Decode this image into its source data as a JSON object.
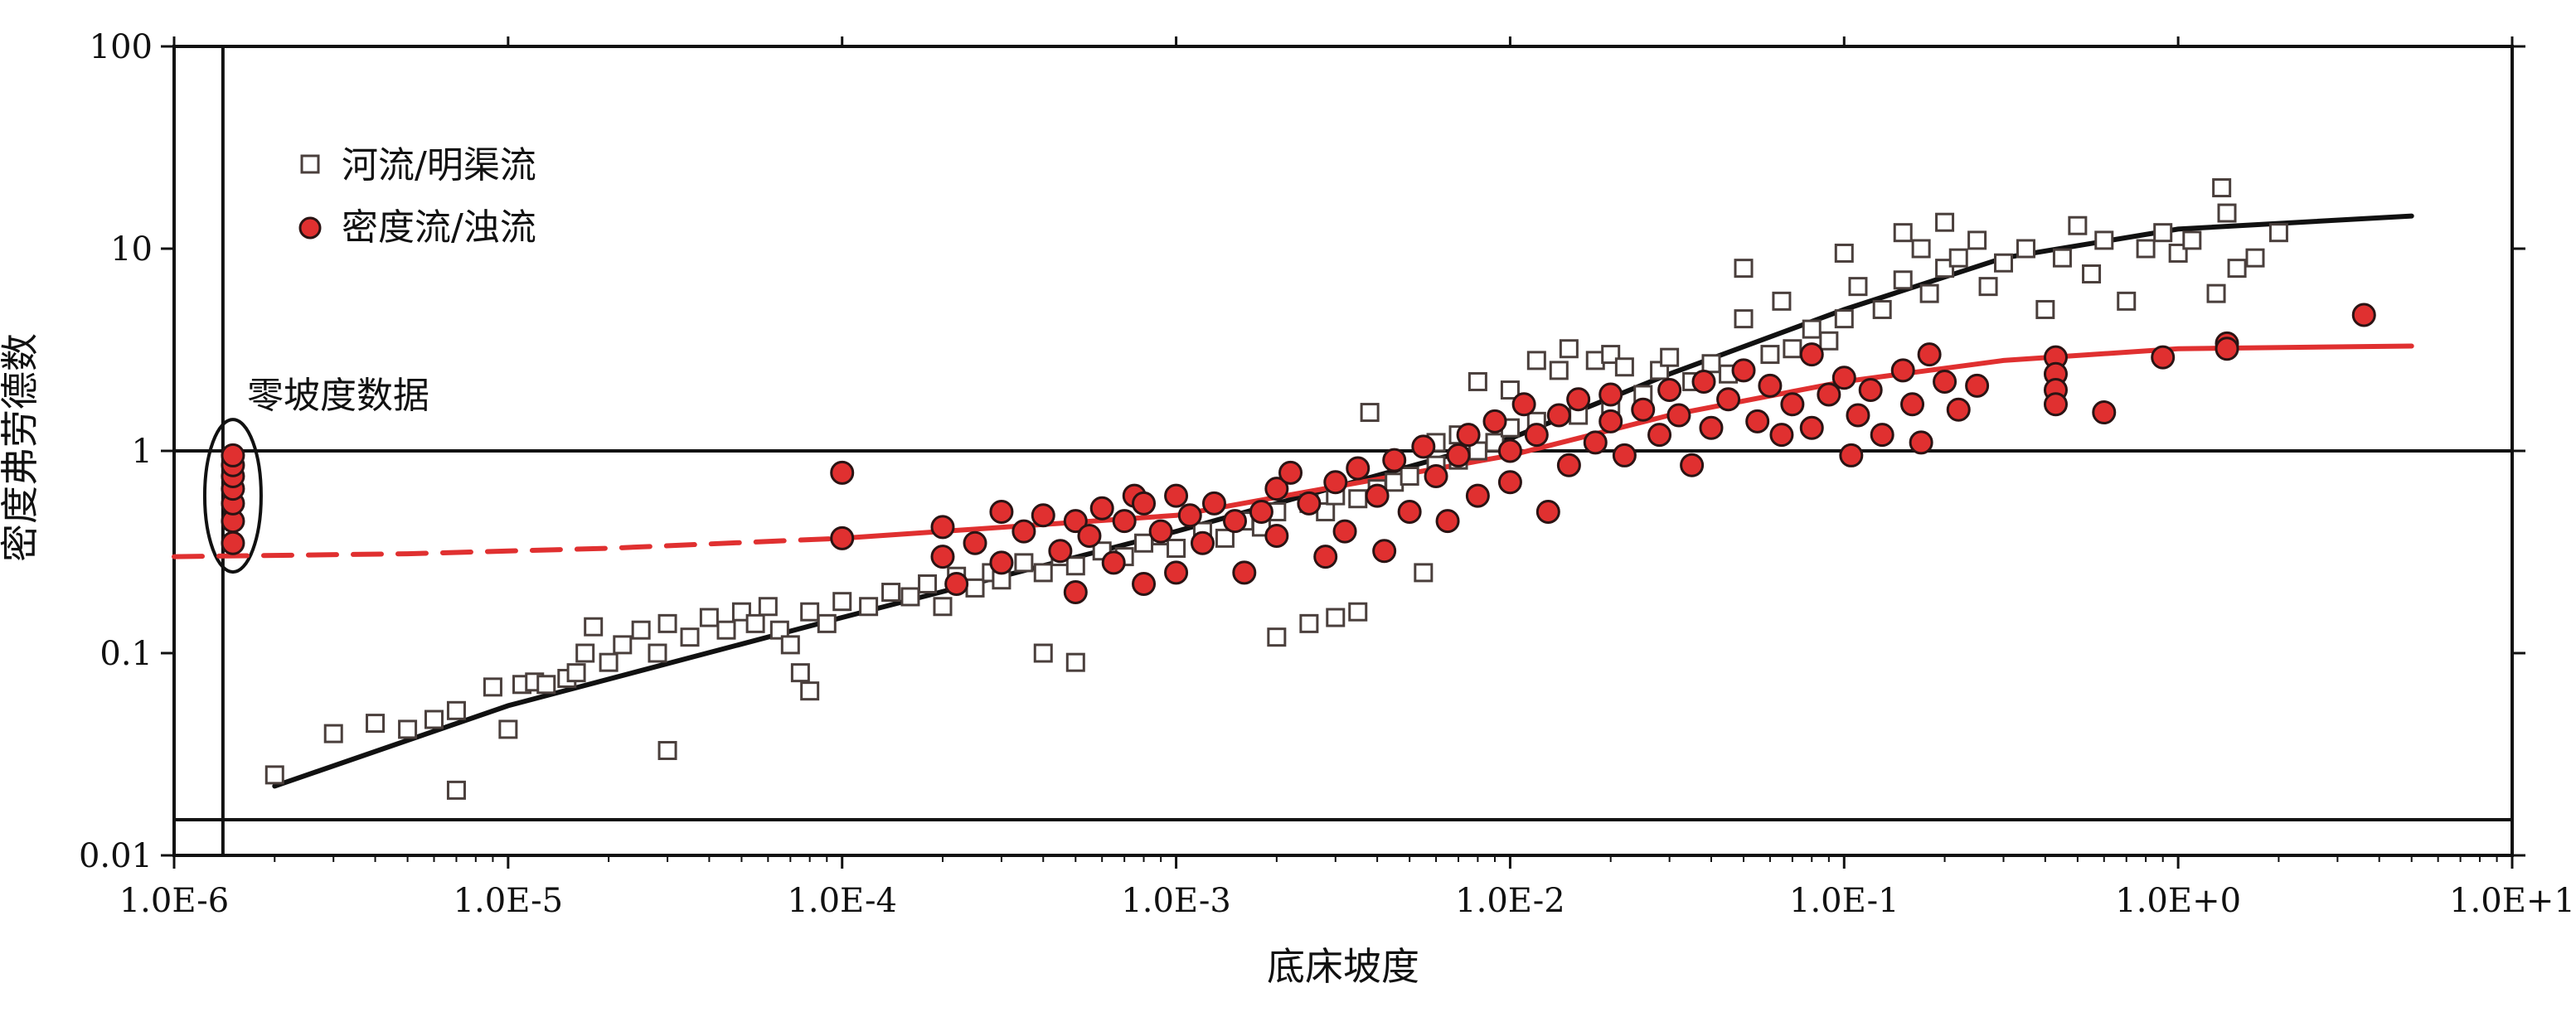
{
  "chart_data": {
    "type": "scatter",
    "xlabel": "底床坡度",
    "ylabel": "密度弗劳德数",
    "x_scale": "log",
    "y_scale": "log",
    "xlim": [
      1e-06,
      10
    ],
    "ylim": [
      0.01,
      100
    ],
    "x_tick_labels": [
      "1.0E-6",
      "1.0E-5",
      "1.0E-4",
      "1.0E-3",
      "1.0E-2",
      "1.0E-1",
      "1.0E+0",
      "1.0E+1"
    ],
    "y_tick_labels": [
      "0.01",
      "0.1",
      "1",
      "10",
      "100"
    ],
    "legend": {
      "position": "top-left",
      "entries": [
        "河流/明渠流",
        "密度流/浊流"
      ]
    },
    "annotation": {
      "text": "零坡度数据"
    },
    "reference_lines": {
      "horizontal_y": [
        1,
        0.015
      ],
      "vertical_x": 1.4e-06
    },
    "series": [
      {
        "name": "河流/明渠流",
        "marker": "open-square",
        "color": "#4a3f3c",
        "points": [
          [
            2e-06,
            0.025
          ],
          [
            3e-06,
            0.04
          ],
          [
            4e-06,
            0.045
          ],
          [
            5e-06,
            0.042
          ],
          [
            6e-06,
            0.047
          ],
          [
            7e-06,
            0.052
          ],
          [
            7e-06,
            0.021
          ],
          [
            9e-06,
            0.068
          ],
          [
            1e-05,
            0.042
          ],
          [
            1.1e-05,
            0.07
          ],
          [
            1.2e-05,
            0.072
          ],
          [
            1.3e-05,
            0.07
          ],
          [
            1.5e-05,
            0.075
          ],
          [
            1.6e-05,
            0.08
          ],
          [
            1.7e-05,
            0.1
          ],
          [
            1.8e-05,
            0.135
          ],
          [
            2e-05,
            0.09
          ],
          [
            2.2e-05,
            0.11
          ],
          [
            2.5e-05,
            0.13
          ],
          [
            2.8e-05,
            0.1
          ],
          [
            3e-05,
            0.033
          ],
          [
            3e-05,
            0.14
          ],
          [
            3.5e-05,
            0.12
          ],
          [
            4e-05,
            0.15
          ],
          [
            4.5e-05,
            0.13
          ],
          [
            5e-05,
            0.16
          ],
          [
            5.5e-05,
            0.14
          ],
          [
            6e-05,
            0.17
          ],
          [
            6.5e-05,
            0.13
          ],
          [
            7e-05,
            0.11
          ],
          [
            7.5e-05,
            0.08
          ],
          [
            8e-05,
            0.065
          ],
          [
            8e-05,
            0.16
          ],
          [
            9e-05,
            0.14
          ],
          [
            0.0001,
            0.18
          ],
          [
            0.00012,
            0.17
          ],
          [
            0.00014,
            0.2
          ],
          [
            0.00016,
            0.19
          ],
          [
            0.00018,
            0.22
          ],
          [
            0.0002,
            0.17
          ],
          [
            0.00022,
            0.24
          ],
          [
            0.00025,
            0.21
          ],
          [
            0.00028,
            0.25
          ],
          [
            0.0003,
            0.23
          ],
          [
            0.00035,
            0.28
          ],
          [
            0.0004,
            0.1
          ],
          [
            0.0004,
            0.25
          ],
          [
            0.00045,
            0.3
          ],
          [
            0.0005,
            0.09
          ],
          [
            0.0005,
            0.27
          ],
          [
            0.0006,
            0.32
          ],
          [
            0.0007,
            0.3
          ],
          [
            0.0008,
            0.35
          ],
          [
            0.0009,
            0.38
          ],
          [
            0.001,
            0.33
          ],
          [
            0.0012,
            0.4
          ],
          [
            0.0014,
            0.37
          ],
          [
            0.0016,
            0.45
          ],
          [
            0.0018,
            0.42
          ],
          [
            0.002,
            0.12
          ],
          [
            0.002,
            0.5
          ],
          [
            0.0025,
            0.14
          ],
          [
            0.0025,
            0.55
          ],
          [
            0.0028,
            0.5
          ],
          [
            0.003,
            0.15
          ],
          [
            0.003,
            0.6
          ],
          [
            0.0035,
            0.16
          ],
          [
            0.0035,
            0.58
          ],
          [
            0.0038,
            1.55
          ],
          [
            0.004,
            0.65
          ],
          [
            0.0045,
            0.7
          ],
          [
            0.005,
            0.75
          ],
          [
            0.0055,
            0.25
          ],
          [
            0.006,
            1.1
          ],
          [
            0.006,
            0.85
          ],
          [
            0.007,
            1.2
          ],
          [
            0.007,
            0.9
          ],
          [
            0.008,
            2.2
          ],
          [
            0.008,
            1.0
          ],
          [
            0.009,
            1.1
          ],
          [
            0.01,
            1.3
          ],
          [
            0.01,
            2.0
          ],
          [
            0.012,
            2.8
          ],
          [
            0.012,
            1.4
          ],
          [
            0.014,
            2.5
          ],
          [
            0.015,
            3.2
          ],
          [
            0.016,
            1.5
          ],
          [
            0.018,
            2.8
          ],
          [
            0.02,
            1.7
          ],
          [
            0.02,
            3.0
          ],
          [
            0.022,
            2.6
          ],
          [
            0.025,
            1.9
          ],
          [
            0.028,
            2.5
          ],
          [
            0.03,
            2.9
          ],
          [
            0.035,
            2.2
          ],
          [
            0.04,
            2.7
          ],
          [
            0.045,
            2.4
          ],
          [
            0.05,
            4.5
          ],
          [
            0.05,
            8.0
          ],
          [
            0.06,
            3.0
          ],
          [
            0.065,
            5.5
          ],
          [
            0.07,
            3.2
          ],
          [
            0.08,
            4.0
          ],
          [
            0.09,
            3.5
          ],
          [
            0.1,
            9.5
          ],
          [
            0.1,
            4.5
          ],
          [
            0.11,
            6.5
          ],
          [
            0.13,
            5.0
          ],
          [
            0.15,
            12.0
          ],
          [
            0.15,
            7.0
          ],
          [
            0.17,
            10.0
          ],
          [
            0.18,
            6.0
          ],
          [
            0.2,
            13.5
          ],
          [
            0.2,
            8.0
          ],
          [
            0.22,
            9.0
          ],
          [
            0.25,
            11.0
          ],
          [
            0.27,
            6.5
          ],
          [
            0.3,
            8.5
          ],
          [
            0.35,
            10.0
          ],
          [
            0.4,
            5.0
          ],
          [
            0.45,
            9.0
          ],
          [
            0.5,
            13.0
          ],
          [
            0.55,
            7.5
          ],
          [
            0.6,
            11.0
          ],
          [
            0.7,
            5.5
          ],
          [
            0.8,
            10.0
          ],
          [
            0.9,
            12.0
          ],
          [
            1.0,
            9.5
          ],
          [
            1.1,
            11.0
          ],
          [
            1.3,
            6.0
          ],
          [
            1.35,
            20.0
          ],
          [
            1.4,
            15.0
          ],
          [
            1.5,
            8.0
          ],
          [
            1.7,
            9.0
          ],
          [
            2.0,
            12.0
          ]
        ]
      },
      {
        "name": "密度流/浊流",
        "marker": "filled-circle",
        "color": "#e03030",
        "points": [
          [
            1.5e-06,
            0.35
          ],
          [
            1.5e-06,
            0.45
          ],
          [
            1.5e-06,
            0.55
          ],
          [
            1.5e-06,
            0.65
          ],
          [
            1.5e-06,
            0.75
          ],
          [
            1.5e-06,
            0.85
          ],
          [
            1.5e-06,
            0.95
          ],
          [
            0.0001,
            0.78
          ],
          [
            0.0001,
            0.37
          ],
          [
            0.0002,
            0.42
          ],
          [
            0.0002,
            0.3
          ],
          [
            0.00022,
            0.22
          ],
          [
            0.00025,
            0.35
          ],
          [
            0.0003,
            0.5
          ],
          [
            0.0003,
            0.28
          ],
          [
            0.00035,
            0.4
          ],
          [
            0.0004,
            0.48
          ],
          [
            0.00045,
            0.32
          ],
          [
            0.0005,
            0.2
          ],
          [
            0.0005,
            0.45
          ],
          [
            0.00055,
            0.38
          ],
          [
            0.0006,
            0.52
          ],
          [
            0.00065,
            0.28
          ],
          [
            0.0007,
            0.45
          ],
          [
            0.00075,
            0.6
          ],
          [
            0.0008,
            0.22
          ],
          [
            0.0008,
            0.55
          ],
          [
            0.0009,
            0.4
          ],
          [
            0.001,
            0.6
          ],
          [
            0.001,
            0.25
          ],
          [
            0.0011,
            0.48
          ],
          [
            0.0012,
            0.35
          ],
          [
            0.0013,
            0.55
          ],
          [
            0.0015,
            0.45
          ],
          [
            0.0016,
            0.25
          ],
          [
            0.0018,
            0.5
          ],
          [
            0.002,
            0.65
          ],
          [
            0.002,
            0.38
          ],
          [
            0.0022,
            0.78
          ],
          [
            0.0025,
            0.55
          ],
          [
            0.0028,
            0.3
          ],
          [
            0.003,
            0.7
          ],
          [
            0.0032,
            0.4
          ],
          [
            0.0035,
            0.82
          ],
          [
            0.004,
            0.6
          ],
          [
            0.0042,
            0.32
          ],
          [
            0.0045,
            0.9
          ],
          [
            0.005,
            0.5
          ],
          [
            0.0055,
            1.05
          ],
          [
            0.006,
            0.75
          ],
          [
            0.0065,
            0.45
          ],
          [
            0.007,
            0.95
          ],
          [
            0.0075,
            1.2
          ],
          [
            0.008,
            0.6
          ],
          [
            0.009,
            1.4
          ],
          [
            0.01,
            1.0
          ],
          [
            0.01,
            0.7
          ],
          [
            0.011,
            1.7
          ],
          [
            0.012,
            1.2
          ],
          [
            0.013,
            0.5
          ],
          [
            0.014,
            1.5
          ],
          [
            0.015,
            0.85
          ],
          [
            0.016,
            1.8
          ],
          [
            0.018,
            1.1
          ],
          [
            0.02,
            1.9
          ],
          [
            0.02,
            1.4
          ],
          [
            0.022,
            0.95
          ],
          [
            0.025,
            1.6
          ],
          [
            0.028,
            1.2
          ],
          [
            0.03,
            2.0
          ],
          [
            0.032,
            1.5
          ],
          [
            0.035,
            0.85
          ],
          [
            0.038,
            2.2
          ],
          [
            0.04,
            1.3
          ],
          [
            0.045,
            1.8
          ],
          [
            0.05,
            2.5
          ],
          [
            0.055,
            1.4
          ],
          [
            0.06,
            2.1
          ],
          [
            0.065,
            1.2
          ],
          [
            0.07,
            1.7
          ],
          [
            0.08,
            3.0
          ],
          [
            0.08,
            1.3
          ],
          [
            0.09,
            1.9
          ],
          [
            0.1,
            2.3
          ],
          [
            0.105,
            0.95
          ],
          [
            0.11,
            1.5
          ],
          [
            0.12,
            2.0
          ],
          [
            0.13,
            1.2
          ],
          [
            0.15,
            2.5
          ],
          [
            0.16,
            1.7
          ],
          [
            0.17,
            1.1
          ],
          [
            0.18,
            3.0
          ],
          [
            0.2,
            2.2
          ],
          [
            0.22,
            1.6
          ],
          [
            0.25,
            2.1
          ],
          [
            0.43,
            2.9
          ],
          [
            0.43,
            2.4
          ],
          [
            0.43,
            2.0
          ],
          [
            0.43,
            1.7
          ],
          [
            0.6,
            1.55
          ],
          [
            0.9,
            2.9
          ],
          [
            1.4,
            3.4
          ],
          [
            1.4,
            3.2
          ],
          [
            3.6,
            4.7
          ]
        ]
      }
    ],
    "trend_lines": [
      {
        "color": "#111111",
        "style": "solid",
        "points": [
          [
            2e-06,
            0.022
          ],
          [
            1e-05,
            0.055
          ],
          [
            0.0001,
            0.15
          ],
          [
            0.001,
            0.4
          ],
          [
            0.01,
            1.15
          ],
          [
            0.03,
            2.4
          ],
          [
            0.1,
            5.0
          ],
          [
            0.3,
            9.0
          ],
          [
            1,
            12.5
          ],
          [
            5,
            14.5
          ]
        ]
      },
      {
        "color": "#e03030",
        "style": "dashed",
        "points": [
          [
            1e-06,
            0.3
          ],
          [
            5e-06,
            0.31
          ],
          [
            2e-05,
            0.33
          ],
          [
            0.0001,
            0.37
          ]
        ]
      },
      {
        "color": "#e03030",
        "style": "solid",
        "points": [
          [
            0.0001,
            0.37
          ],
          [
            0.001,
            0.48
          ],
          [
            0.01,
            0.95
          ],
          [
            0.03,
            1.5
          ],
          [
            0.1,
            2.2
          ],
          [
            0.3,
            2.8
          ],
          [
            1,
            3.2
          ],
          [
            5,
            3.3
          ]
        ]
      }
    ]
  }
}
